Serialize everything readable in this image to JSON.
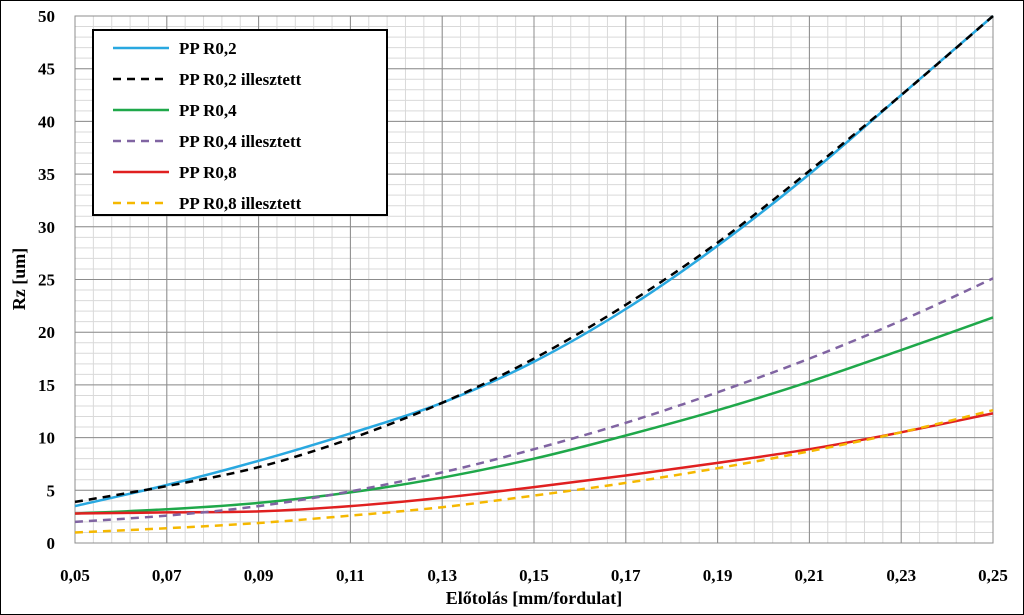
{
  "chart_data": {
    "type": "line",
    "title": "",
    "xlabel": "Előtolás [mm/fordulat]",
    "ylabel": "Rz [um]",
    "xlim": [
      0.05,
      0.25
    ],
    "ylim": [
      0,
      50
    ],
    "x_major_ticks": [
      "0,05",
      "0,07",
      "0,09",
      "0,11",
      "0,13",
      "0,15",
      "0,17",
      "0,19",
      "0,21",
      "0,23",
      "0,25"
    ],
    "y_major_ticks": [
      "0",
      "5",
      "10",
      "15",
      "20",
      "25",
      "30",
      "35",
      "40",
      "45",
      "50"
    ],
    "grid": true,
    "legend_position": "top-left",
    "x": [
      0.05,
      0.07,
      0.09,
      0.11,
      0.13,
      0.15,
      0.17,
      0.19,
      0.21,
      0.23,
      0.25
    ],
    "series": [
      {
        "name": "PP R0,2",
        "color": "#29A8E0",
        "dash": "solid",
        "values": [
          3.5,
          5.5,
          7.8,
          10.4,
          13.3,
          17.2,
          22.2,
          28.2,
          35.0,
          42.5,
          50.0
        ]
      },
      {
        "name": "PP R0,2 illesztett",
        "color": "#000000",
        "dash": "dashed",
        "values": [
          3.9,
          5.4,
          7.2,
          9.9,
          13.3,
          17.5,
          22.6,
          28.5,
          35.3,
          42.5,
          50.0
        ]
      },
      {
        "name": "PP R0,4",
        "color": "#1FA84A",
        "dash": "solid",
        "values": [
          2.8,
          3.2,
          3.8,
          4.8,
          6.2,
          8.0,
          10.2,
          12.6,
          15.3,
          18.3,
          21.4
        ]
      },
      {
        "name": "PP R0,4 illesztett",
        "color": "#8064A2",
        "dash": "dashed",
        "values": [
          2.0,
          2.6,
          3.5,
          4.9,
          6.7,
          8.9,
          11.4,
          14.3,
          17.5,
          21.1,
          25.1
        ]
      },
      {
        "name": "PP R0,8",
        "color": "#E02020",
        "dash": "solid",
        "values": [
          2.8,
          2.9,
          3.0,
          3.5,
          4.3,
          5.3,
          6.4,
          7.6,
          8.9,
          10.5,
          12.3
        ]
      },
      {
        "name": "PP R0,8 illesztett",
        "color": "#F5B800",
        "dash": "dashed",
        "values": [
          1.0,
          1.4,
          1.9,
          2.6,
          3.4,
          4.5,
          5.7,
          7.1,
          8.7,
          10.5,
          12.6
        ]
      }
    ]
  }
}
